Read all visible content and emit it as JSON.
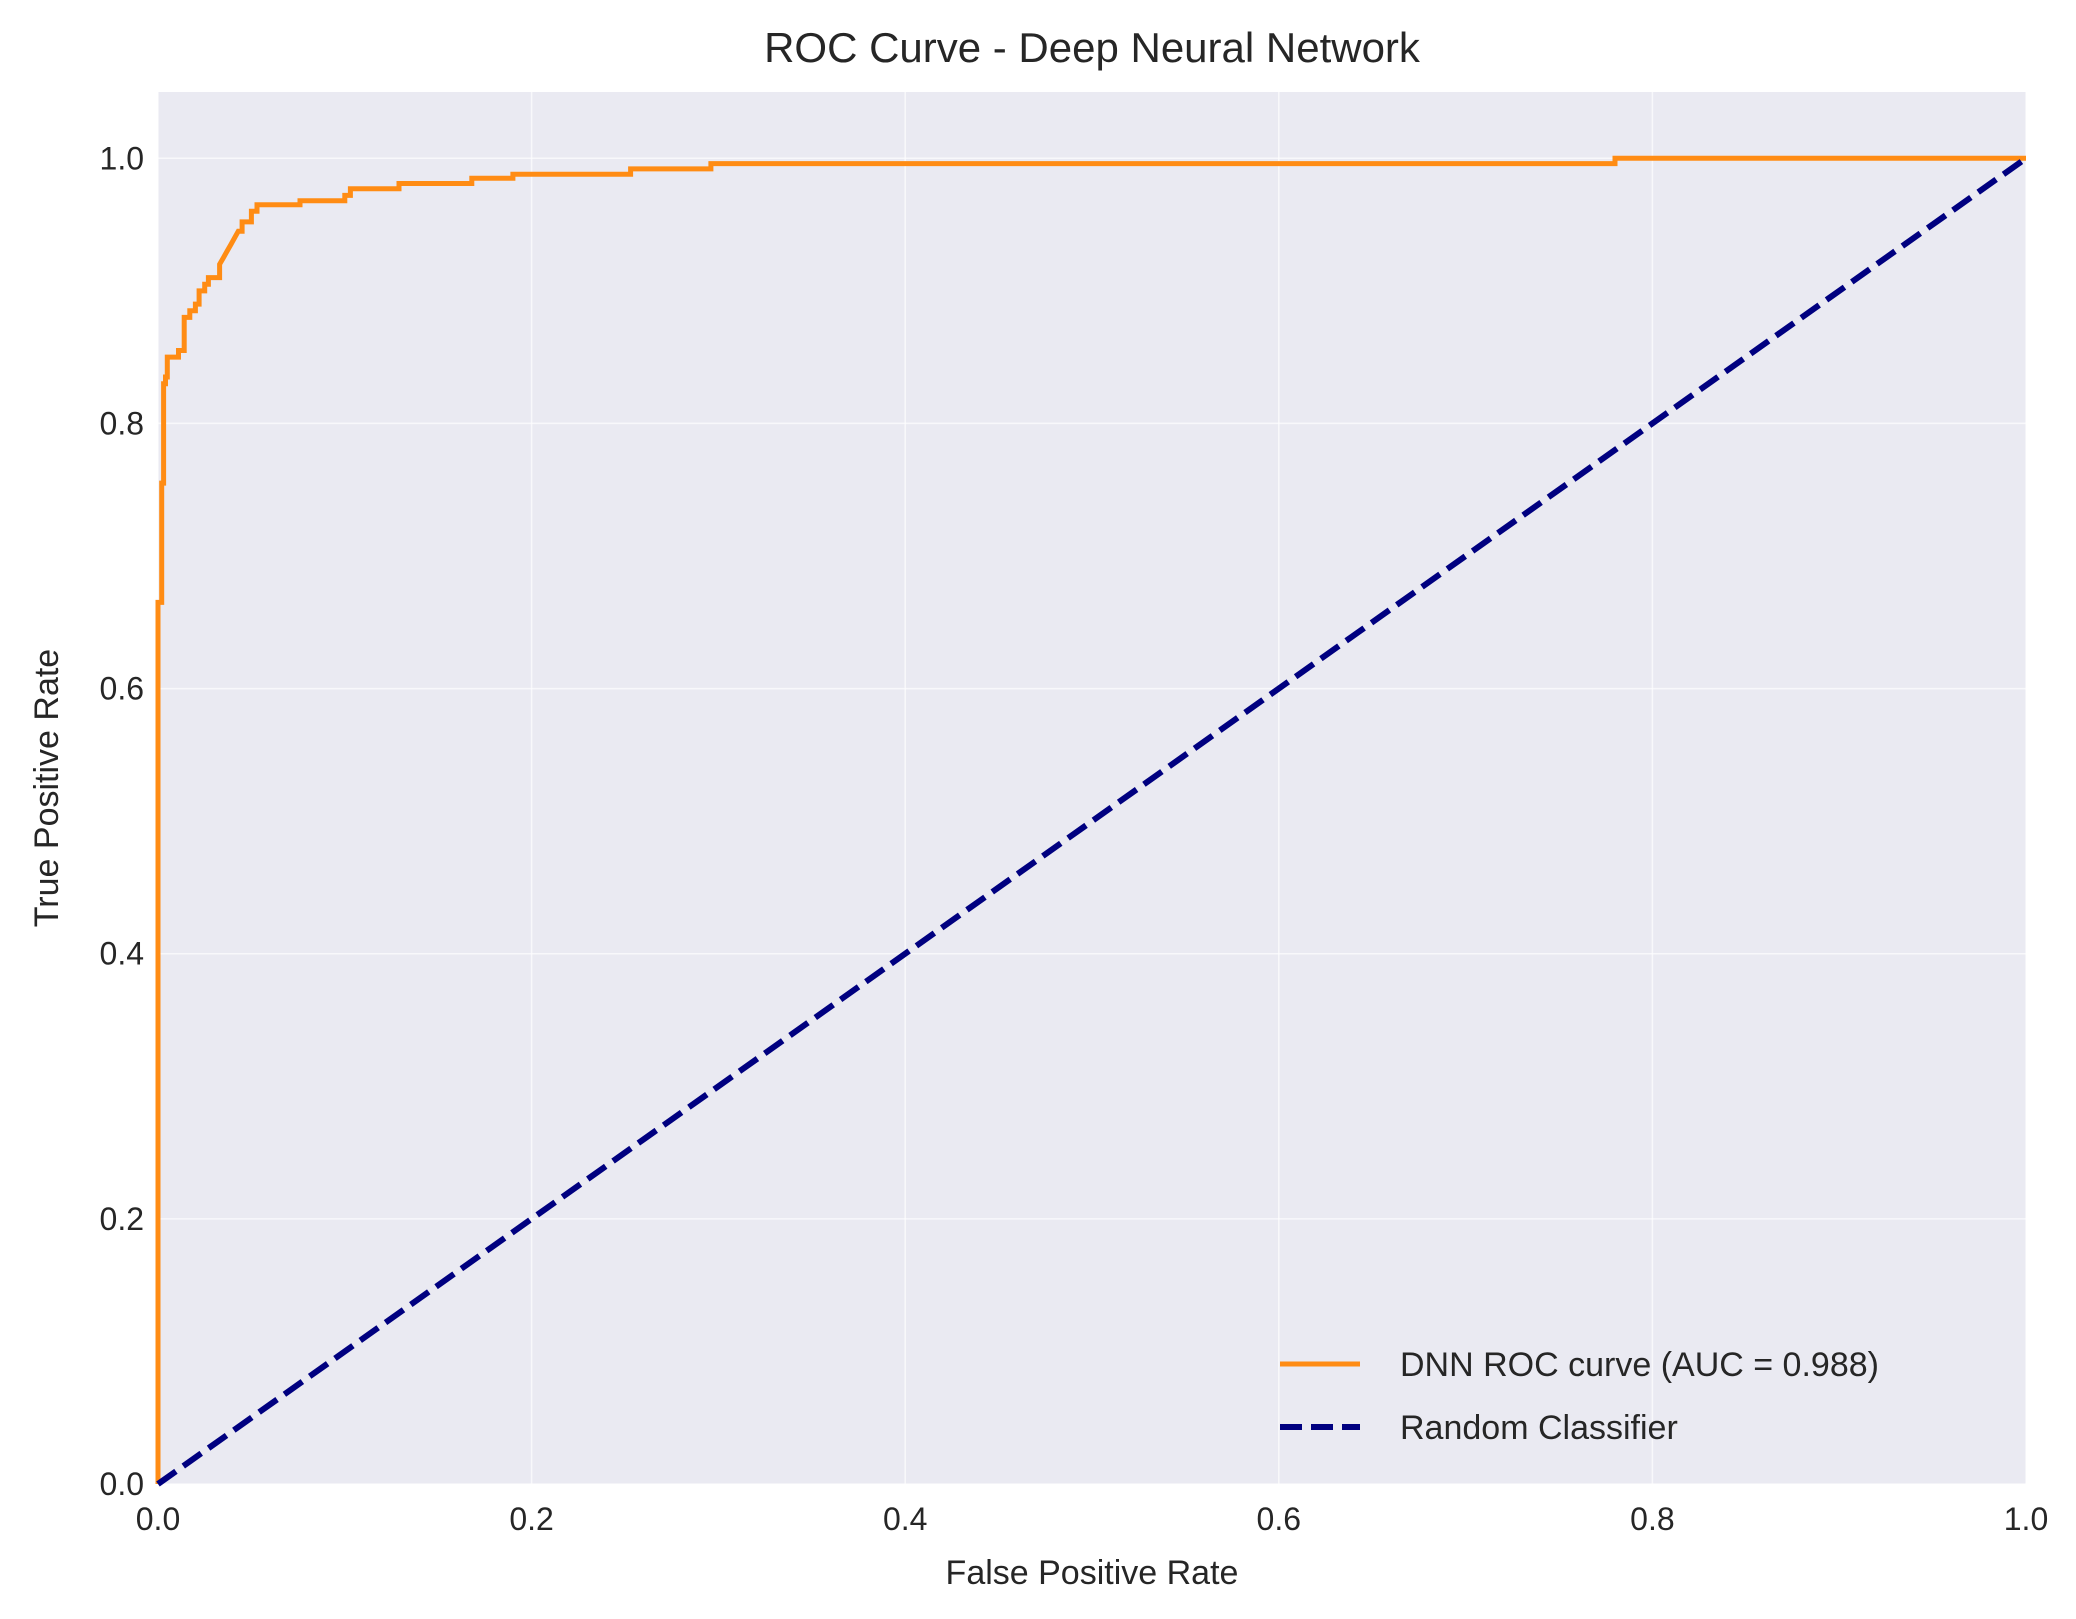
{
  "chart_data": {
    "type": "line",
    "title": "ROC Curve - Deep Neural Network",
    "xlabel": "False Positive Rate",
    "ylabel": "True Positive Rate",
    "xlim": [
      0.0,
      1.0
    ],
    "ylim": [
      0.0,
      1.05
    ],
    "x_ticks": [
      "0.0",
      "0.2",
      "0.4",
      "0.6",
      "0.8",
      "1.0"
    ],
    "y_ticks": [
      "0.0",
      "0.2",
      "0.4",
      "0.6",
      "0.8",
      "1.0"
    ],
    "grid": true,
    "legend_position": "lower-right",
    "background_color": "#eaeaf2",
    "series": [
      {
        "name": "DNN ROC curve (AUC = 0.988)",
        "color": "#ff8c14",
        "style": "solid",
        "x": [
          0.0,
          0.0,
          0.002,
          0.002,
          0.003,
          0.003,
          0.004,
          0.004,
          0.005,
          0.005,
          0.011,
          0.011,
          0.014,
          0.014,
          0.017,
          0.017,
          0.02,
          0.02,
          0.022,
          0.022,
          0.025,
          0.025,
          0.027,
          0.027,
          0.033,
          0.033,
          0.035,
          0.037,
          0.039,
          0.041,
          0.043,
          0.045,
          0.045,
          0.05,
          0.05,
          0.053,
          0.053,
          0.076,
          0.076,
          0.1,
          0.1,
          0.103,
          0.103,
          0.129,
          0.129,
          0.168,
          0.168,
          0.19,
          0.19,
          0.253,
          0.253,
          0.296,
          0.296,
          0.78,
          0.78,
          1.0
        ],
        "y": [
          0.0,
          0.665,
          0.665,
          0.755,
          0.755,
          0.83,
          0.83,
          0.835,
          0.835,
          0.85,
          0.85,
          0.855,
          0.855,
          0.88,
          0.88,
          0.885,
          0.885,
          0.89,
          0.89,
          0.9,
          0.9,
          0.905,
          0.905,
          0.91,
          0.91,
          0.92,
          0.925,
          0.93,
          0.935,
          0.94,
          0.945,
          0.945,
          0.952,
          0.952,
          0.96,
          0.96,
          0.965,
          0.965,
          0.968,
          0.968,
          0.972,
          0.972,
          0.977,
          0.977,
          0.981,
          0.981,
          0.985,
          0.985,
          0.988,
          0.988,
          0.992,
          0.992,
          0.996,
          0.996,
          1.0,
          1.0
        ]
      },
      {
        "name": "Random Classifier",
        "color": "#000080",
        "style": "dashed",
        "x": [
          0.0,
          1.0
        ],
        "y": [
          0.0,
          1.0
        ]
      }
    ]
  }
}
